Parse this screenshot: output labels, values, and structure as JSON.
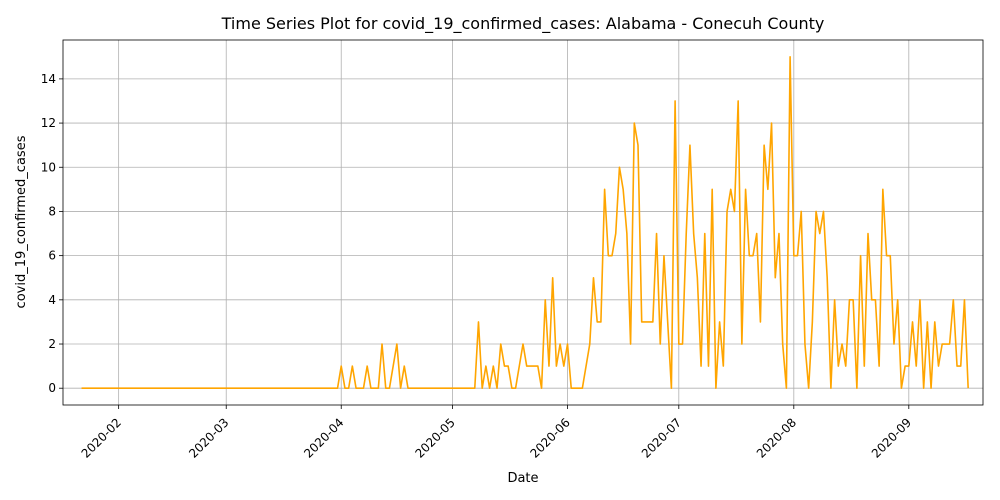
{
  "chart_data": {
    "type": "line",
    "title": "Time Series Plot for covid_19_confirmed_cases: Alabama - Conecuh County",
    "xlabel": "Date",
    "ylabel": "covid_19_confirmed_cases",
    "x_tick_labels": [
      "2020-02",
      "2020-03",
      "2020-04",
      "2020-05",
      "2020-06",
      "2020-07",
      "2020-08",
      "2020-09"
    ],
    "y_tick_labels": [
      "0",
      "2",
      "4",
      "6",
      "8",
      "10",
      "12",
      "14"
    ],
    "x_tick_dates": [
      "2020-02-01",
      "2020-03-01",
      "2020-04-01",
      "2020-05-01",
      "2020-06-01",
      "2020-07-01",
      "2020-08-01",
      "2020-09-01"
    ],
    "xlim": [
      "2020-01-17",
      "2020-09-21"
    ],
    "ylim": [
      -0.76,
      15.76
    ],
    "grid": true,
    "line_color": "#ffa500",
    "series": [
      {
        "start_date": "2020-01-22",
        "values": [
          0,
          0,
          0,
          0,
          0,
          0,
          0,
          0,
          0,
          0,
          0,
          0,
          0,
          0,
          0,
          0,
          0,
          0,
          0,
          0,
          0,
          0,
          0,
          0,
          0,
          0,
          0,
          0,
          0,
          0,
          0,
          0,
          0,
          0,
          0,
          0,
          0,
          0,
          0,
          0,
          0,
          0,
          0,
          0,
          0,
          0,
          0,
          0,
          0,
          0,
          0,
          0,
          0,
          0,
          0,
          0,
          0,
          0,
          0,
          0,
          0,
          0,
          0,
          0,
          0,
          0,
          0,
          0,
          0,
          0,
          1,
          0,
          0,
          1,
          0,
          0,
          0,
          1,
          0,
          0,
          0,
          2,
          0,
          0,
          1,
          2,
          0,
          1,
          0,
          0,
          0,
          0,
          0,
          0,
          0,
          0,
          0,
          0,
          0,
          0,
          0,
          0,
          0,
          0,
          0,
          0,
          0,
          3,
          0,
          1,
          0,
          1,
          0,
          2,
          1,
          1,
          0,
          0,
          1,
          2,
          1,
          1,
          1,
          1,
          0,
          4,
          1,
          5,
          1,
          2,
          1,
          2,
          0,
          0,
          0,
          0,
          1,
          2,
          5,
          3,
          3,
          9,
          6,
          6,
          7,
          10,
          9,
          7,
          2,
          12,
          11,
          3,
          3,
          3,
          3,
          7,
          2,
          6,
          3,
          0,
          13,
          2,
          2,
          7,
          11,
          7,
          5,
          1,
          7,
          1,
          9,
          0,
          3,
          1,
          8,
          9,
          8,
          13,
          2,
          9,
          6,
          6,
          7,
          3,
          11,
          9,
          12,
          5,
          7,
          2,
          0,
          15,
          6,
          6,
          8,
          2,
          0,
          3,
          8,
          7,
          8,
          5,
          0,
          4,
          1,
          2,
          1,
          4,
          4,
          0,
          6,
          1,
          7,
          4,
          4,
          1,
          9,
          6,
          6,
          2,
          4,
          0,
          1,
          1,
          3,
          1,
          4,
          0,
          3,
          0,
          3,
          1,
          2,
          2,
          2,
          4,
          1,
          1,
          4,
          0
        ]
      }
    ]
  }
}
